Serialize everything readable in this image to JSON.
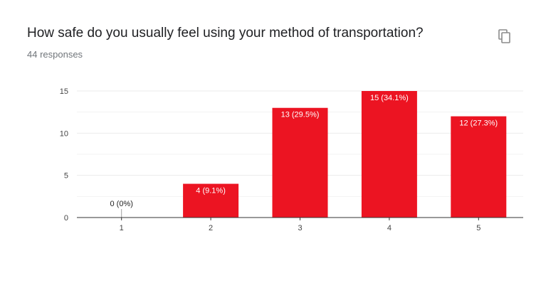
{
  "question": {
    "title": "How safe do you usually feel using your method of transportation?",
    "responses": "44 responses",
    "copy_icon": "copy-icon"
  },
  "colors": {
    "bar": "#ec1422",
    "grid": "#ebebeb",
    "axis": "#333333",
    "label_inside": "#ffffff",
    "label_outside": "#222222"
  },
  "chart_data": {
    "type": "bar",
    "categories": [
      "1",
      "2",
      "3",
      "4",
      "5"
    ],
    "values": [
      0,
      4,
      13,
      15,
      12
    ],
    "data_labels": [
      "0 (0%)",
      "4 (9.1%)",
      "13 (29.5%)",
      "15 (34.1%)",
      "12 (27.3%)"
    ],
    "title": "How safe do you usually feel using your method of transportation?",
    "xlabel": "",
    "ylabel": "",
    "ylim": [
      0,
      15
    ],
    "yticks": [
      0,
      5,
      10,
      15
    ],
    "grid": true,
    "legend": "none"
  }
}
